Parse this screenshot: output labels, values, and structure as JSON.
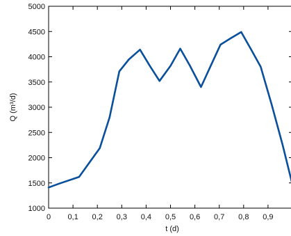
{
  "chart_data": {
    "type": "line",
    "xlabel": "t (d)",
    "ylabel": "Q (m³/d)",
    "xlim": [
      0,
      1
    ],
    "ylim": [
      1000,
      5000
    ],
    "xticks": [
      0,
      0.1,
      0.2,
      0.3,
      0.4,
      0.5,
      0.6,
      0.7,
      0.8,
      0.9
    ],
    "xtick_labels": [
      "0",
      "0,1",
      "0,2",
      "0,3",
      "0,4",
      "0,5",
      "0,6",
      "0,7",
      "0,8",
      "0,9"
    ],
    "yticks": [
      1000,
      1500,
      2000,
      2500,
      3000,
      3500,
      4000,
      4500,
      5000
    ],
    "ytick_labels": [
      "1000",
      "1500",
      "2000",
      "2500",
      "3000",
      "3500",
      "4000",
      "4500",
      "5000"
    ],
    "grid": false,
    "series": [
      {
        "color": "#0a4f9c",
        "x": [
          0,
          0.04,
          0.125,
          0.21,
          0.25,
          0.29,
          0.33,
          0.375,
          0.415,
          0.455,
          0.5,
          0.54,
          0.58,
          0.625,
          0.665,
          0.705,
          0.745,
          0.79,
          0.83,
          0.87,
          0.915,
          0.96,
          1.0
        ],
        "y": [
          1410,
          1480,
          1620,
          2190,
          2800,
          3710,
          3950,
          4140,
          3820,
          3520,
          3820,
          4160,
          3820,
          3400,
          3820,
          4240,
          4360,
          4490,
          4150,
          3800,
          3050,
          2250,
          1470
        ]
      }
    ]
  }
}
